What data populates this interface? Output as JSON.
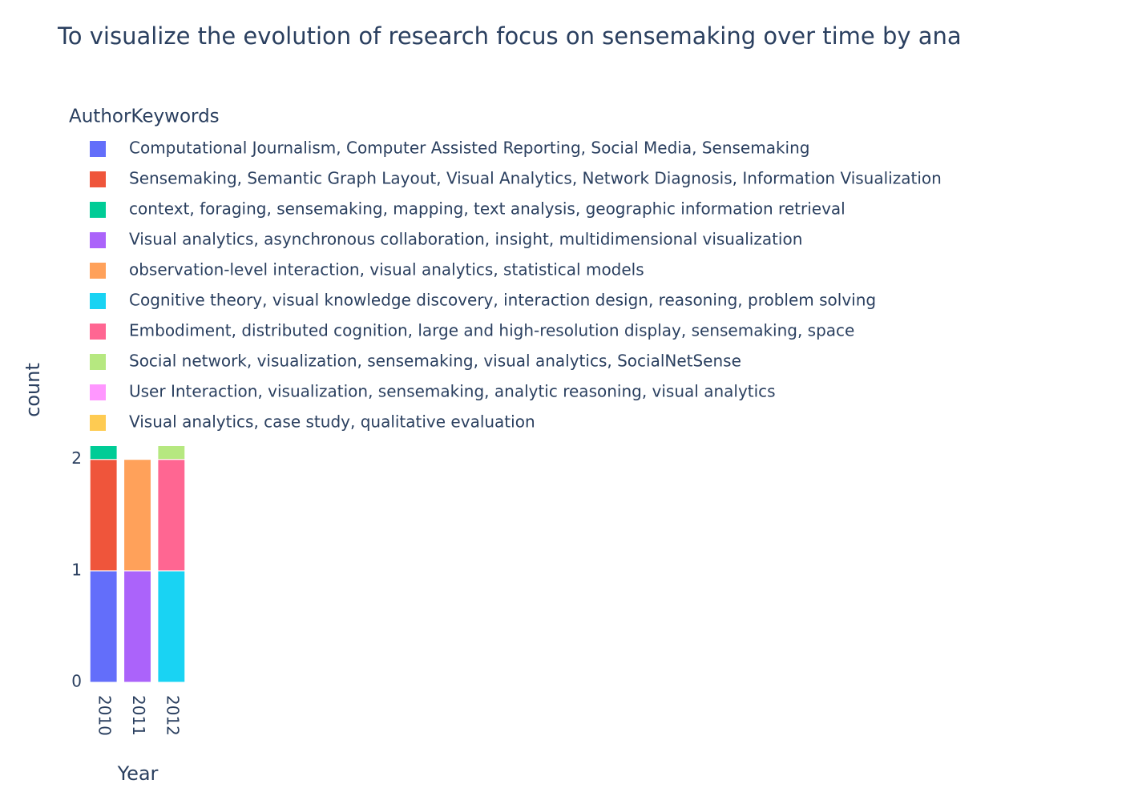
{
  "chart_data": {
    "type": "bar",
    "stacked": true,
    "title": "To visualize the evolution of research focus on sensemaking over time by ana",
    "xlabel": "Year",
    "ylabel": "count",
    "legend_title": "AuthorKeywords",
    "categories": [
      "2010",
      "2011",
      "2012"
    ],
    "ylim": [
      0,
      2.12
    ],
    "yticks": [
      0,
      1,
      2
    ],
    "series": [
      {
        "name": "Computational Journalism, Computer Assisted Reporting, Social Media, Sensemaking",
        "color": "#636efa",
        "values": [
          1,
          null,
          null
        ]
      },
      {
        "name": "Sensemaking, Semantic Graph Layout, Visual Analytics, Network Diagnosis, Information Visualization",
        "color": "#EF553B",
        "values": [
          1,
          null,
          null
        ]
      },
      {
        "name": "context, foraging, sensemaking, mapping, text analysis, geographic information retrieval",
        "color": "#00cc96",
        "values": [
          1,
          null,
          null
        ]
      },
      {
        "name": "Visual analytics, asynchronous collaboration, insight, multidimensional visualization",
        "color": "#ab63fa",
        "values": [
          null,
          1,
          null
        ]
      },
      {
        "name": "observation-level interaction, visual analytics, statistical models",
        "color": "#FFA15A",
        "values": [
          null,
          1,
          null
        ]
      },
      {
        "name": "Cognitive theory, visual knowledge discovery, interaction design, reasoning, problem solving",
        "color": "#19d3f3",
        "values": [
          null,
          null,
          1
        ]
      },
      {
        "name": "Embodiment, distributed cognition, large and high-resolution display, sensemaking, space",
        "color": "#FF6692",
        "values": [
          null,
          null,
          1
        ]
      },
      {
        "name": "Social network, visualization, sensemaking, visual analytics, SocialNetSense",
        "color": "#B6E880",
        "values": [
          null,
          null,
          1
        ]
      },
      {
        "name": "User Interaction, visualization, sensemaking, analytic reasoning, visual analytics",
        "color": "#FF97FF",
        "values": [
          null,
          null,
          null
        ]
      },
      {
        "name": "Visual analytics, case study, qualitative evaluation",
        "color": "#FECB52",
        "values": [
          null,
          null,
          null
        ]
      }
    ]
  }
}
